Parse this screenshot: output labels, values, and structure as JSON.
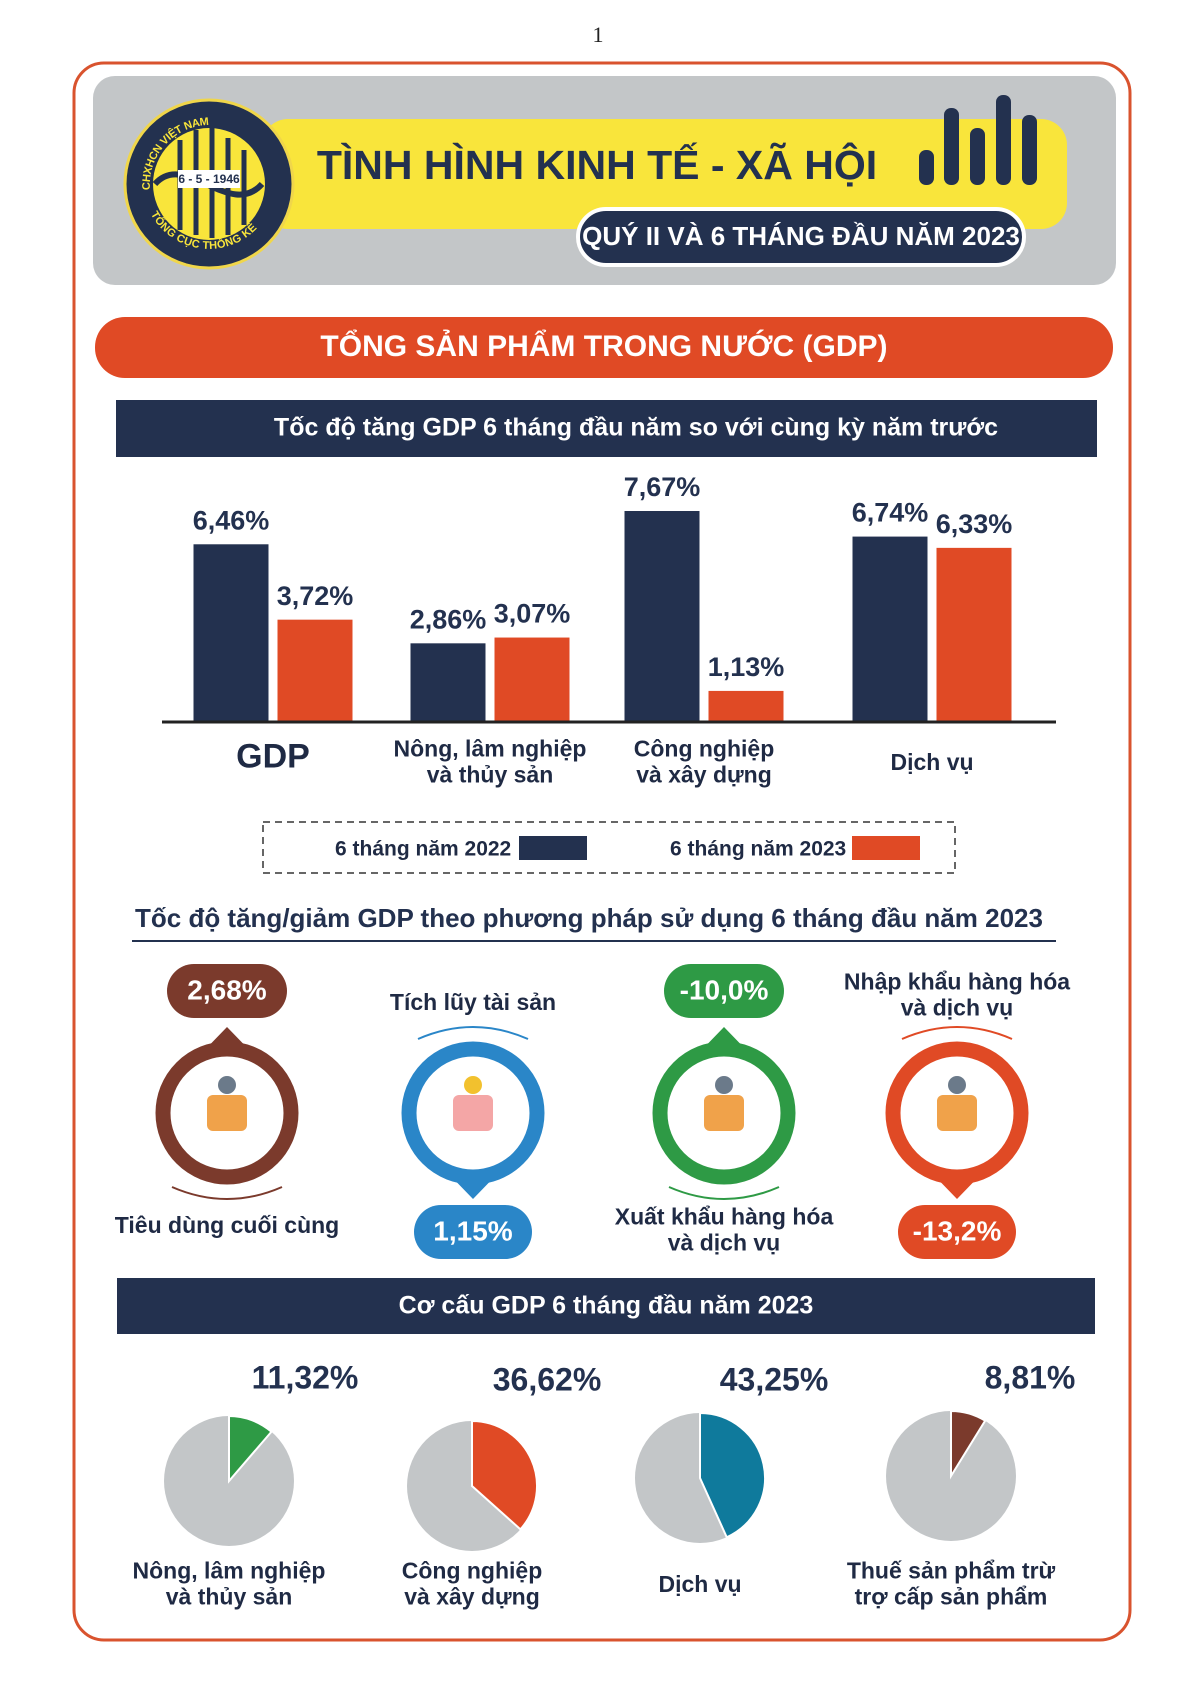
{
  "page_number": "1",
  "header": {
    "logo": {
      "top_text": "CHXHCN VIỆT NAM",
      "date": "6 - 5 - 1946",
      "bottom_text": "TỔNG CỤC THỐNG KÊ"
    },
    "title": "TÌNH HÌNH KINH TẾ - XÃ HỘI",
    "subtitle": "QUÝ II VÀ 6 THÁNG ĐẦU NĂM 2023"
  },
  "section_title": "TỔNG SẢN PHẨM TRONG NƯỚC (GDP)",
  "chart_data": [
    {
      "type": "bar",
      "title": "Tốc độ tăng GDP 6 tháng đầu năm so với cùng kỳ năm trước",
      "categories": [
        "GDP",
        "Nông, lâm nghiệp\nvà thủy sản",
        "Công nghiệp\nvà xây dựng",
        "Dịch vụ"
      ],
      "series": [
        {
          "name": "6 tháng năm 2022",
          "color": "#23314f",
          "values": [
            6.46,
            2.86,
            7.67,
            6.74
          ],
          "value_labels": [
            "6,46%",
            "2,86%",
            "7,67%",
            "6,74%"
          ]
        },
        {
          "name": "6 tháng năm 2023",
          "color": "#e04a25",
          "values": [
            3.72,
            3.07,
            1.13,
            6.33
          ],
          "value_labels": [
            "3,72%",
            "3,07%",
            "1,13%",
            "6,33%"
          ]
        }
      ],
      "legend": "bottom"
    },
    {
      "type": "pie",
      "title": "Cơ cấu GDP 6 tháng đầu năm 2023",
      "categories": [
        "Nông, lâm nghiệp\nvà thủy sản",
        "Công nghiệp\nvà xây dựng",
        "Dịch vụ",
        "Thuế sản phẩm trừ\ntrợ cấp sản phẩm"
      ],
      "values": [
        11.32,
        36.62,
        43.25,
        8.81
      ],
      "value_labels": [
        "11,32%",
        "36,62%",
        "43,25%",
        "8,81%"
      ],
      "colors": [
        "#2e9a45",
        "#e04a25",
        "#0f7a9c",
        "#7b3a2c"
      ]
    }
  ],
  "usage": {
    "title": "Tốc độ tăng/giảm GDP theo phương pháp sử dụng 6 tháng đầu năm 2023",
    "items": [
      {
        "label": "Tiêu dùng cuối cùng",
        "value": "2,68%"
      },
      {
        "label": "Tích lũy tài sản",
        "value": "1,15%"
      },
      {
        "label": "Xuất khẩu hàng hóa\nvà dịch vụ",
        "value": "-10,0%"
      },
      {
        "label": "Nhập khẩu hàng hóa\nvà dịch vụ",
        "value": "-13,2%"
      }
    ]
  }
}
